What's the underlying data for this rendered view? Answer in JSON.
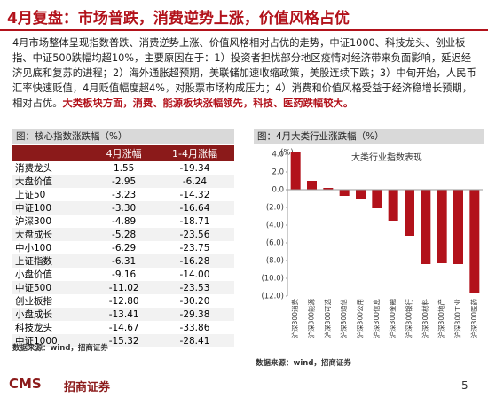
{
  "header": {
    "title": "4月复盘：市场普跌，消费逆势上涨，价值风格占优"
  },
  "summary": {
    "body": "4月市场整体呈现指数普跌、消费逆势上涨、价值风格相对占优的走势，中证1000、科技龙头、创业板指、中证500跌幅均超10%，主要原因在于：1）投资者担忧部分地区疫情对经济带来负面影响，延迟经济见底和复苏的进程；2）海外通胀超预期，美联储加速收缩政策，美股连续下跌；3）中旬开始，人民币汇率快速贬值，4月贬值幅度超4%，对股票市场构成压力；4）消费和价值风格受益于经济稳增长预期，相对占优。",
    "highlight": "大类板块方面，消费、能源板块涨幅领先，科技、医药跌幅较大。"
  },
  "table": {
    "title": "图：核心指数涨跌幅（%）",
    "columns": [
      "4月涨幅",
      "1-4月涨幅"
    ],
    "rows": [
      [
        "消费龙头",
        "1.55",
        "-19.34"
      ],
      [
        "大盘价值",
        "-2.95",
        "-6.24"
      ],
      [
        "上证50",
        "-3.23",
        "-14.32"
      ],
      [
        "中证100",
        "-3.30",
        "-16.64"
      ],
      [
        "沪深300",
        "-4.89",
        "-18.71"
      ],
      [
        "大盘成长",
        "-5.28",
        "-23.56"
      ],
      [
        "中小100",
        "-6.29",
        "-23.75"
      ],
      [
        "上证指数",
        "-6.31",
        "-16.28"
      ],
      [
        "小盘价值",
        "-9.16",
        "-14.00"
      ],
      [
        "中证500",
        "-11.02",
        "-23.53"
      ],
      [
        "创业板指",
        "-12.80",
        "-30.20"
      ],
      [
        "小盘成长",
        "-13.41",
        "-29.38"
      ],
      [
        "科技龙头",
        "-14.67",
        "-33.86"
      ],
      [
        "中证1000",
        "-15.32",
        "-28.41"
      ]
    ],
    "source": "数据来源：wind，招商证券"
  },
  "chart_data": {
    "type": "bar",
    "title": "图：4月大类行业涨跌幅（%）",
    "subtitle": "大类行业指数表现",
    "ylabel": "(%)",
    "color": "#b2121b",
    "categories": [
      "沪深300消费",
      "沪深300能源",
      "沪深300可选",
      "沪深300通信",
      "沪深300公用",
      "沪深300信息",
      "沪深300金融",
      "沪深300银行",
      "沪深300材料",
      "沪深300地产",
      "沪深300工业",
      "沪深300医药"
    ],
    "values": [
      4.3,
      1.0,
      0.2,
      -0.7,
      -1.0,
      -2.1,
      -3.5,
      -5.2,
      -8.4,
      -8.3,
      -8.4,
      -11.6
    ],
    "ylim": [
      -12,
      4
    ],
    "yticks": [
      {
        "value": 4,
        "label": "4.0"
      },
      {
        "value": 2,
        "label": "2.0"
      },
      {
        "value": 0,
        "label": "0.0"
      },
      {
        "value": -2,
        "label": "(2.0)"
      },
      {
        "value": -4,
        "label": "(4.0)"
      },
      {
        "value": -6,
        "label": "(6.0)"
      },
      {
        "value": -8,
        "label": "(8.0)"
      },
      {
        "value": -10,
        "label": "(10.0)"
      },
      {
        "value": -12,
        "label": "(12.0)"
      }
    ],
    "source": "数据来源：wind，招商证券"
  },
  "footer": {
    "logo": "CMS",
    "brand": "招商证券",
    "page": "-5-"
  }
}
